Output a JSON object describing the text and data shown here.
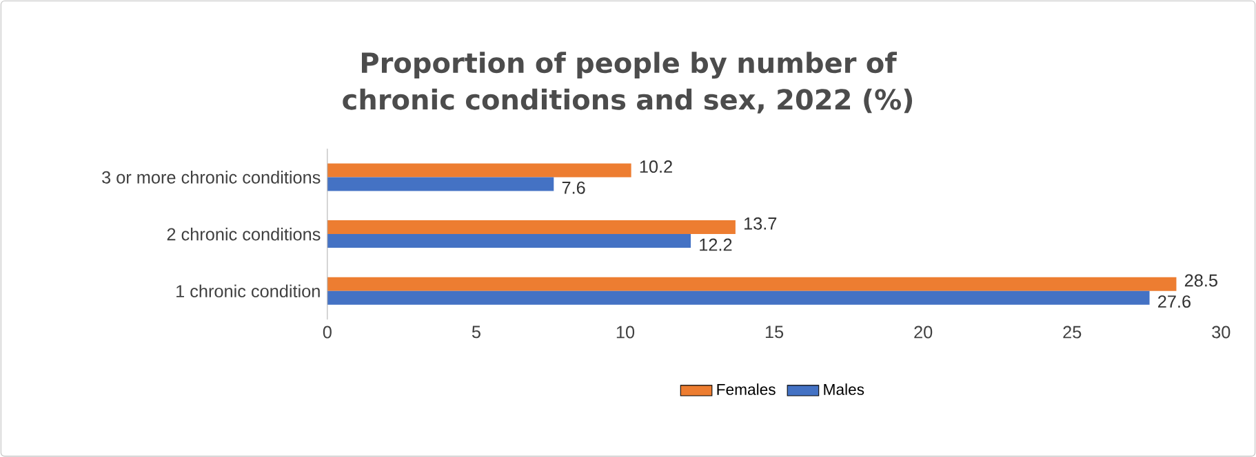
{
  "chart_data": {
    "type": "bar",
    "orientation": "horizontal",
    "title": "Proportion of people by number of chronic conditions and sex, 2022 (%)",
    "categories": [
      "3 or more chronic conditions",
      "2 chronic conditions",
      "1 chronic condition"
    ],
    "series": [
      {
        "name": "Females",
        "color": "#ed7d31",
        "values": [
          10.2,
          13.7,
          28.5
        ]
      },
      {
        "name": "Males",
        "color": "#4472c4",
        "values": [
          7.6,
          12.2,
          27.6
        ]
      }
    ],
    "xlim": [
      0,
      30
    ],
    "xticks": [
      0,
      5,
      10,
      15,
      20,
      25,
      30
    ],
    "data_labels": true,
    "legend": "bottom"
  }
}
